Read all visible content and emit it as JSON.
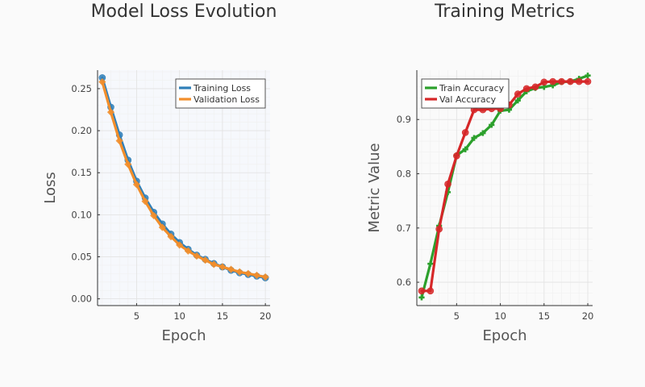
{
  "chart_data": [
    {
      "type": "line",
      "title": "Model Loss Evolution",
      "xlabel": "Epoch",
      "ylabel": "Loss",
      "xlim": [
        0.45,
        20.55
      ],
      "ylim": [
        -0.008,
        0.272
      ],
      "xticks": [
        5,
        10,
        15,
        20
      ],
      "xtick_labels": [
        "5",
        "10",
        "15",
        "20"
      ],
      "yticks": [
        0.0,
        0.05,
        0.1,
        0.15,
        0.2,
        0.25
      ],
      "ytick_labels": [
        "0.00",
        "0.05",
        "0.10",
        "0.15",
        "0.20",
        "0.25"
      ],
      "grid": true,
      "legend_position": "top-right",
      "x": [
        1,
        2,
        3,
        4,
        5,
        6,
        7,
        8,
        9,
        10,
        11,
        12,
        13,
        14,
        15,
        16,
        17,
        18,
        19,
        20
      ],
      "series": [
        {
          "name": "Training Loss",
          "color": "#2f7fb8",
          "marker": "circle",
          "values": [
            0.263,
            0.228,
            0.195,
            0.165,
            0.14,
            0.12,
            0.103,
            0.089,
            0.077,
            0.067,
            0.059,
            0.052,
            0.047,
            0.042,
            0.038,
            0.034,
            0.031,
            0.029,
            0.027,
            0.025
          ]
        },
        {
          "name": "Validation Loss",
          "color": "#f28e2b",
          "marker": "diamond",
          "values": [
            0.258,
            0.222,
            0.188,
            0.16,
            0.136,
            0.116,
            0.099,
            0.085,
            0.074,
            0.064,
            0.057,
            0.051,
            0.046,
            0.041,
            0.038,
            0.035,
            0.032,
            0.03,
            0.028,
            0.026
          ]
        }
      ]
    },
    {
      "type": "line",
      "title": "Training Metrics",
      "xlabel": "Epoch",
      "ylabel": "Metric Value",
      "xlim": [
        0.45,
        20.55
      ],
      "ylim": [
        0.557,
        0.991
      ],
      "xticks": [
        5,
        10,
        15,
        20
      ],
      "xtick_labels": [
        "5",
        "10",
        "15",
        "20"
      ],
      "yticks": [
        0.6,
        0.7,
        0.8,
        0.9
      ],
      "ytick_labels": [
        "0.6",
        "0.7",
        "0.8",
        "0.9"
      ],
      "grid": true,
      "legend_position": "top-left",
      "x": [
        1,
        2,
        3,
        4,
        5,
        6,
        7,
        8,
        9,
        10,
        11,
        12,
        13,
        14,
        15,
        16,
        17,
        18,
        19,
        20
      ],
      "series": [
        {
          "name": "Train Accuracy",
          "color": "#2ca02c",
          "marker": "cross",
          "values": [
            0.572,
            0.634,
            0.704,
            0.766,
            0.834,
            0.845,
            0.866,
            0.875,
            0.89,
            0.916,
            0.918,
            0.935,
            0.952,
            0.958,
            0.96,
            0.963,
            0.969,
            0.97,
            0.975,
            0.981
          ]
        },
        {
          "name": "Val Accuracy",
          "color": "#d62728",
          "marker": "circle",
          "values": [
            0.584,
            0.584,
            0.698,
            0.781,
            0.833,
            0.876,
            0.918,
            0.918,
            0.92,
            0.92,
            0.927,
            0.947,
            0.957,
            0.96,
            0.969,
            0.97,
            0.97,
            0.97,
            0.97,
            0.97
          ]
        }
      ]
    }
  ]
}
